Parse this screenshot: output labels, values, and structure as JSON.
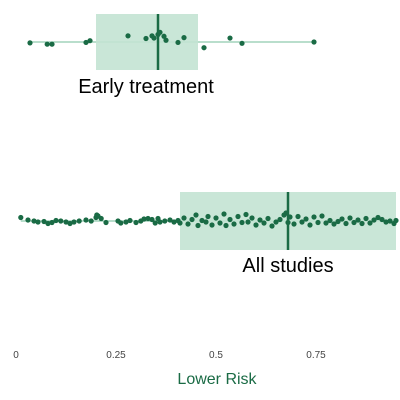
{
  "chart_data": {
    "type": "scatter",
    "xlabel": "Lower Risk",
    "xlim": [
      0,
      0.95
    ],
    "ticks": [
      {
        "value": 0,
        "label": "0"
      },
      {
        "value": 0.25,
        "label": "0.25"
      },
      {
        "value": 0.5,
        "label": "0.5"
      },
      {
        "value": 0.75,
        "label": "0.75"
      }
    ],
    "grid": false,
    "colors": {
      "point": "#1a6b45",
      "box_fill": "#c3e3d3",
      "line": "#8fcbae",
      "median": "#1a6b45",
      "axis_title": "#1a6b45"
    },
    "series": [
      {
        "name": "Early treatment",
        "box": {
          "q1": 0.2,
          "median": 0.355,
          "q3": 0.455
        },
        "points": [
          {
            "x": 0.035,
            "y": 0.2
          },
          {
            "x": 0.078,
            "y": 0.5
          },
          {
            "x": 0.09,
            "y": 0.5
          },
          {
            "x": 0.175,
            "y": 0.1
          },
          {
            "x": 0.185,
            "y": -0.3
          },
          {
            "x": 0.28,
            "y": -1.4
          },
          {
            "x": 0.325,
            "y": -0.8
          },
          {
            "x": 0.34,
            "y": -1.4
          },
          {
            "x": 0.345,
            "y": -0.9
          },
          {
            "x": 0.355,
            "y": -1.7
          },
          {
            "x": 0.36,
            "y": -2.2
          },
          {
            "x": 0.37,
            "y": -1.3
          },
          {
            "x": 0.375,
            "y": -0.4
          },
          {
            "x": 0.405,
            "y": 0.1
          },
          {
            "x": 0.42,
            "y": -1.0
          },
          {
            "x": 0.47,
            "y": 1.3
          },
          {
            "x": 0.535,
            "y": -0.9
          },
          {
            "x": 0.565,
            "y": 0.3
          },
          {
            "x": 0.745,
            "y": 0.0
          }
        ]
      },
      {
        "name": "All studies",
        "box": {
          "q1": 0.41,
          "median": 0.68,
          "q3": 0.95
        },
        "points": [
          {
            "x": 0.012,
            "y": -0.7
          },
          {
            "x": 0.03,
            "y": -0.2
          },
          {
            "x": 0.045,
            "y": 0.0
          },
          {
            "x": 0.055,
            "y": 0.2
          },
          {
            "x": 0.07,
            "y": 0.1
          },
          {
            "x": 0.08,
            "y": 0.5
          },
          {
            "x": 0.09,
            "y": 0.3
          },
          {
            "x": 0.1,
            "y": -0.1
          },
          {
            "x": 0.112,
            "y": 0.0
          },
          {
            "x": 0.125,
            "y": 0.2
          },
          {
            "x": 0.135,
            "y": 0.5
          },
          {
            "x": 0.145,
            "y": 0.2
          },
          {
            "x": 0.158,
            "y": 0.0
          },
          {
            "x": 0.175,
            "y": -0.2
          },
          {
            "x": 0.188,
            "y": 0.0
          },
          {
            "x": 0.2,
            "y": -0.7
          },
          {
            "x": 0.205,
            "y": -1.0
          },
          {
            "x": 0.202,
            "y": -1.2
          },
          {
            "x": 0.213,
            "y": -0.5
          },
          {
            "x": 0.225,
            "y": 0.3
          },
          {
            "x": 0.255,
            "y": 0.0
          },
          {
            "x": 0.262,
            "y": 0.4
          },
          {
            "x": 0.275,
            "y": 0.2
          },
          {
            "x": 0.285,
            "y": -0.1
          },
          {
            "x": 0.3,
            "y": 0.3
          },
          {
            "x": 0.312,
            "y": 0.0
          },
          {
            "x": 0.32,
            "y": -0.4
          },
          {
            "x": 0.33,
            "y": -0.5
          },
          {
            "x": 0.34,
            "y": -0.3
          },
          {
            "x": 0.348,
            "y": 0.4
          },
          {
            "x": 0.355,
            "y": -0.5
          },
          {
            "x": 0.36,
            "y": 0.2
          },
          {
            "x": 0.372,
            "y": 0.0
          },
          {
            "x": 0.385,
            "y": -0.2
          },
          {
            "x": 0.395,
            "y": 0.2
          },
          {
            "x": 0.405,
            "y": -0.1
          },
          {
            "x": 0.41,
            "y": 0.4
          },
          {
            "x": 0.42,
            "y": -0.6
          },
          {
            "x": 0.43,
            "y": 0.6
          },
          {
            "x": 0.44,
            "y": -0.3
          },
          {
            "x": 0.45,
            "y": -1.2
          },
          {
            "x": 0.455,
            "y": 0.9
          },
          {
            "x": 0.465,
            "y": -0.1
          },
          {
            "x": 0.475,
            "y": 0.2
          },
          {
            "x": 0.48,
            "y": -0.9
          },
          {
            "x": 0.49,
            "y": 0.8
          },
          {
            "x": 0.5,
            "y": -0.6
          },
          {
            "x": 0.51,
            "y": 0.4
          },
          {
            "x": 0.52,
            "y": -1.4
          },
          {
            "x": 0.525,
            "y": 0.9
          },
          {
            "x": 0.535,
            "y": -0.3
          },
          {
            "x": 0.545,
            "y": 0.6
          },
          {
            "x": 0.555,
            "y": -0.9
          },
          {
            "x": 0.565,
            "y": 0.3
          },
          {
            "x": 0.575,
            "y": -1.3
          },
          {
            "x": 0.58,
            "y": 0.2
          },
          {
            "x": 0.59,
            "y": -0.6
          },
          {
            "x": 0.6,
            "y": 0.8
          },
          {
            "x": 0.61,
            "y": -0.2
          },
          {
            "x": 0.62,
            "y": 0.4
          },
          {
            "x": 0.63,
            "y": -0.5
          },
          {
            "x": 0.64,
            "y": 1.0
          },
          {
            "x": 0.65,
            "y": 0.2
          },
          {
            "x": 0.66,
            "y": -0.3
          },
          {
            "x": 0.67,
            "y": -1.2
          },
          {
            "x": 0.675,
            "y": -1.6
          },
          {
            "x": 0.68,
            "y": 0.3
          },
          {
            "x": 0.685,
            "y": -0.8
          },
          {
            "x": 0.695,
            "y": 0.6
          },
          {
            "x": 0.705,
            "y": -0.9
          },
          {
            "x": 0.715,
            "y": 0.2
          },
          {
            "x": 0.725,
            "y": -0.4
          },
          {
            "x": 0.735,
            "y": 0.8
          },
          {
            "x": 0.745,
            "y": -0.8
          },
          {
            "x": 0.755,
            "y": 0.3
          },
          {
            "x": 0.765,
            "y": -1.0
          },
          {
            "x": 0.775,
            "y": 0.4
          },
          {
            "x": 0.785,
            "y": -0.1
          },
          {
            "x": 0.795,
            "y": 0.6
          },
          {
            "x": 0.805,
            "y": 0.1
          },
          {
            "x": 0.815,
            "y": -0.4
          },
          {
            "x": 0.825,
            "y": 0.5
          },
          {
            "x": 0.835,
            "y": -0.6
          },
          {
            "x": 0.845,
            "y": 0.3
          },
          {
            "x": 0.855,
            "y": -0.2
          },
          {
            "x": 0.865,
            "y": 0.5
          },
          {
            "x": 0.875,
            "y": -0.5
          },
          {
            "x": 0.885,
            "y": 0.4
          },
          {
            "x": 0.895,
            "y": -0.2
          },
          {
            "x": 0.905,
            "y": -0.7
          },
          {
            "x": 0.915,
            "y": -0.3
          },
          {
            "x": 0.925,
            "y": 0.2
          },
          {
            "x": 0.935,
            "y": 0.0
          },
          {
            "x": 0.945,
            "y": 0.5
          },
          {
            "x": 0.95,
            "y": -0.1
          }
        ]
      }
    ]
  }
}
